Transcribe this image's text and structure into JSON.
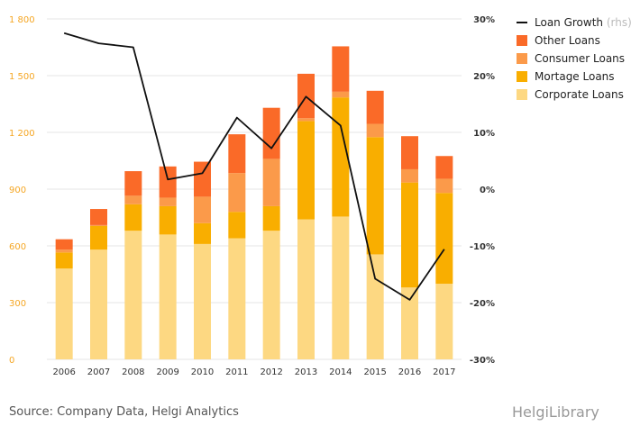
{
  "chart_data": {
    "type": "bar",
    "stacked": true,
    "categories": [
      "2006",
      "2007",
      "2008",
      "2009",
      "2010",
      "2011",
      "2012",
      "2013",
      "2014",
      "2015",
      "2016",
      "2017"
    ],
    "series": [
      {
        "name": "Corporate Loans",
        "color": "#fdd882",
        "values": [
          480,
          580,
          680,
          660,
          610,
          640,
          680,
          740,
          755,
          555,
          380,
          400
        ]
      },
      {
        "name": "Mortage Loans",
        "color": "#f9ae00",
        "values": [
          85,
          125,
          140,
          150,
          110,
          140,
          130,
          520,
          630,
          620,
          555,
          480
        ]
      },
      {
        "name": "Consumer Loans",
        "color": "#fb9a4a",
        "values": [
          15,
          5,
          45,
          45,
          140,
          205,
          250,
          15,
          30,
          70,
          70,
          75
        ]
      },
      {
        "name": "Other Loans",
        "color": "#fa6a28",
        "values": [
          55,
          85,
          130,
          165,
          185,
          205,
          270,
          235,
          240,
          175,
          175,
          120
        ]
      }
    ],
    "line": {
      "name": "Loan Growth",
      "name_suffix": "(rhs)",
      "color": "#111111",
      "axis": "right",
      "values": [
        27.5,
        25.7,
        25.0,
        1.7,
        2.8,
        12.6,
        7.2,
        16.3,
        11.2,
        -15.8,
        -19.5,
        -10.6
      ]
    },
    "y_left": {
      "ylim": [
        0,
        1800
      ],
      "ticks": [
        0,
        300,
        600,
        900,
        1200,
        1500,
        1800
      ],
      "tick_labels": [
        "0",
        "300",
        "600",
        "900",
        "1 200",
        "1 500",
        "1 800"
      ]
    },
    "y_right": {
      "ylim": [
        -30,
        30
      ],
      "ticks": [
        -30,
        -20,
        -10,
        0,
        10,
        20,
        30
      ],
      "tick_labels": [
        "-30%",
        "-20%",
        "-10%",
        "0%",
        "10%",
        "20%",
        "30%"
      ]
    },
    "grid": "horizontal",
    "legend_position": "top-right",
    "legend_order": [
      "Loan Growth",
      "Other Loans",
      "Consumer Loans",
      "Mortage Loans",
      "Corporate Loans"
    ]
  },
  "footer": {
    "source": "Source: Company Data, Helgi Analytics",
    "logo_text": "HelgiLibrary"
  }
}
